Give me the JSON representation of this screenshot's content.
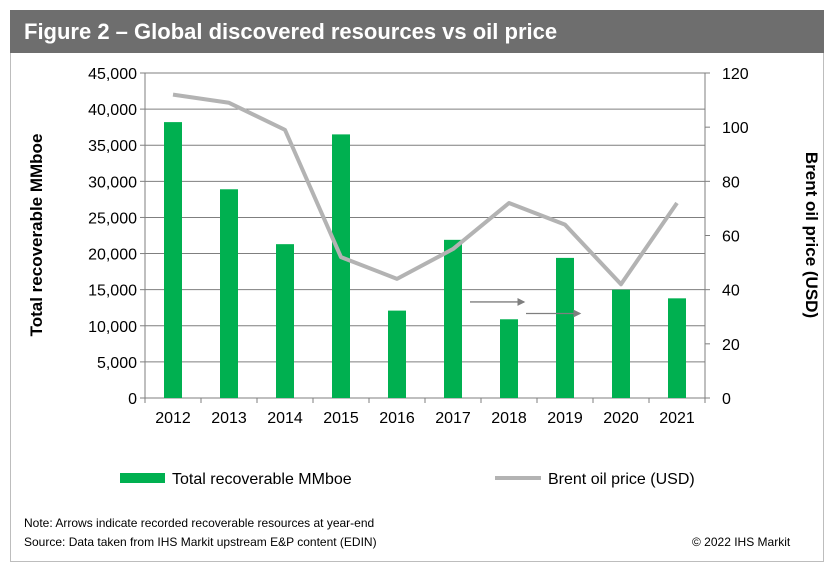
{
  "header": {
    "title": "Figure 2 – Global discovered resources vs oil price"
  },
  "chart_data": {
    "type": "bar+line",
    "categories": [
      "2012",
      "2013",
      "2014",
      "2015",
      "2016",
      "2017",
      "2018",
      "2019",
      "2020",
      "2021"
    ],
    "series": [
      {
        "name": "Total recoverable MMboe",
        "type": "bar",
        "axis": "left",
        "color": "#00b050",
        "values": [
          38200,
          28900,
          21300,
          36500,
          12100,
          21900,
          10900,
          19400,
          15000,
          13800
        ]
      },
      {
        "name": "Brent oil price (USD)",
        "type": "line",
        "axis": "right",
        "color": "#b3b3b3",
        "values": [
          112,
          109,
          99,
          52,
          44,
          55,
          72,
          64,
          42,
          72
        ]
      }
    ],
    "ylabel": "Total recoverable MMboe",
    "y2label": "Brent oil price (USD)",
    "ylim": [
      0,
      45000
    ],
    "y2lim": [
      0,
      120
    ],
    "yticks": [
      "0",
      "5,000",
      "10,000",
      "15,000",
      "20,000",
      "25,000",
      "30,000",
      "35,000",
      "40,000",
      "45,000"
    ],
    "y2ticks": [
      "0",
      "20",
      "40",
      "60",
      "80",
      "100",
      "120"
    ],
    "grid": true,
    "legend": "bottom",
    "annotations": [
      {
        "type": "arrow",
        "from_year": "2017",
        "to_year": "2018",
        "value_left_axis": 13300
      },
      {
        "type": "arrow",
        "from_year": "2018",
        "to_year": "2019",
        "value_left_axis": 11700
      }
    ]
  },
  "footer": {
    "note": "Note: Arrows indicate recorded recoverable resources at year-end",
    "source": "Source: Data taken from IHS Markit upstream E&P content (EDIN)",
    "copyright": "© 2022 IHS Markit"
  }
}
